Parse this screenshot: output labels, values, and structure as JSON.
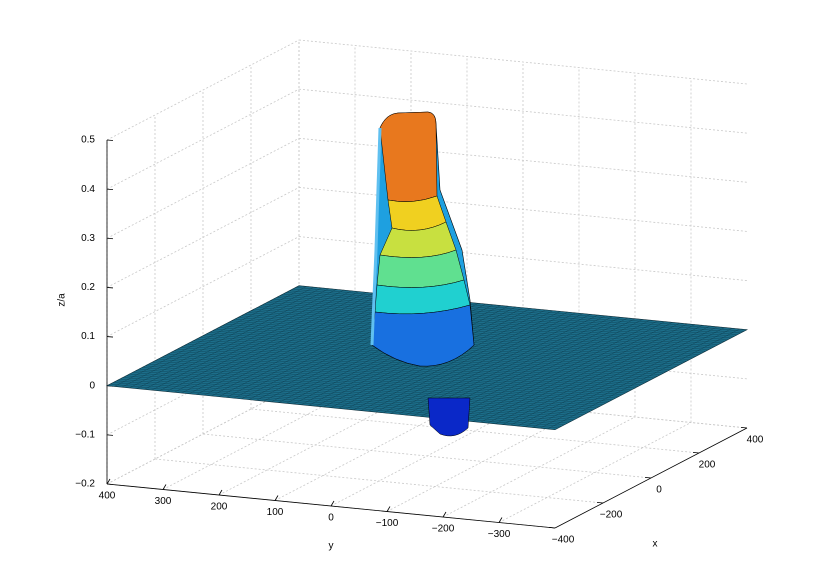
{
  "chart_data": {
    "type": "surface3d",
    "xlabel": "x",
    "ylabel": "y",
    "zlabel": "z/a",
    "xlim": [
      -400,
      400
    ],
    "ylim": [
      -400,
      400
    ],
    "zlim": [
      -0.2,
      0.5
    ],
    "xticks": [
      {
        "value": -400,
        "label": "−400"
      },
      {
        "value": -200,
        "label": "−200"
      },
      0,
      200,
      400
    ],
    "yticks": [
      400,
      300,
      200,
      100,
      0,
      {
        "value": -100,
        "label": "−100"
      },
      {
        "value": -200,
        "label": "−200"
      },
      {
        "value": -300,
        "label": "−300"
      }
    ],
    "zticks": [
      {
        "value": -0.2,
        "label": "−0.2"
      },
      {
        "value": -0.1,
        "label": "−0.1"
      },
      0,
      0.1,
      0.2,
      0.3,
      0.4,
      0.5
    ],
    "grid": true
  }
}
